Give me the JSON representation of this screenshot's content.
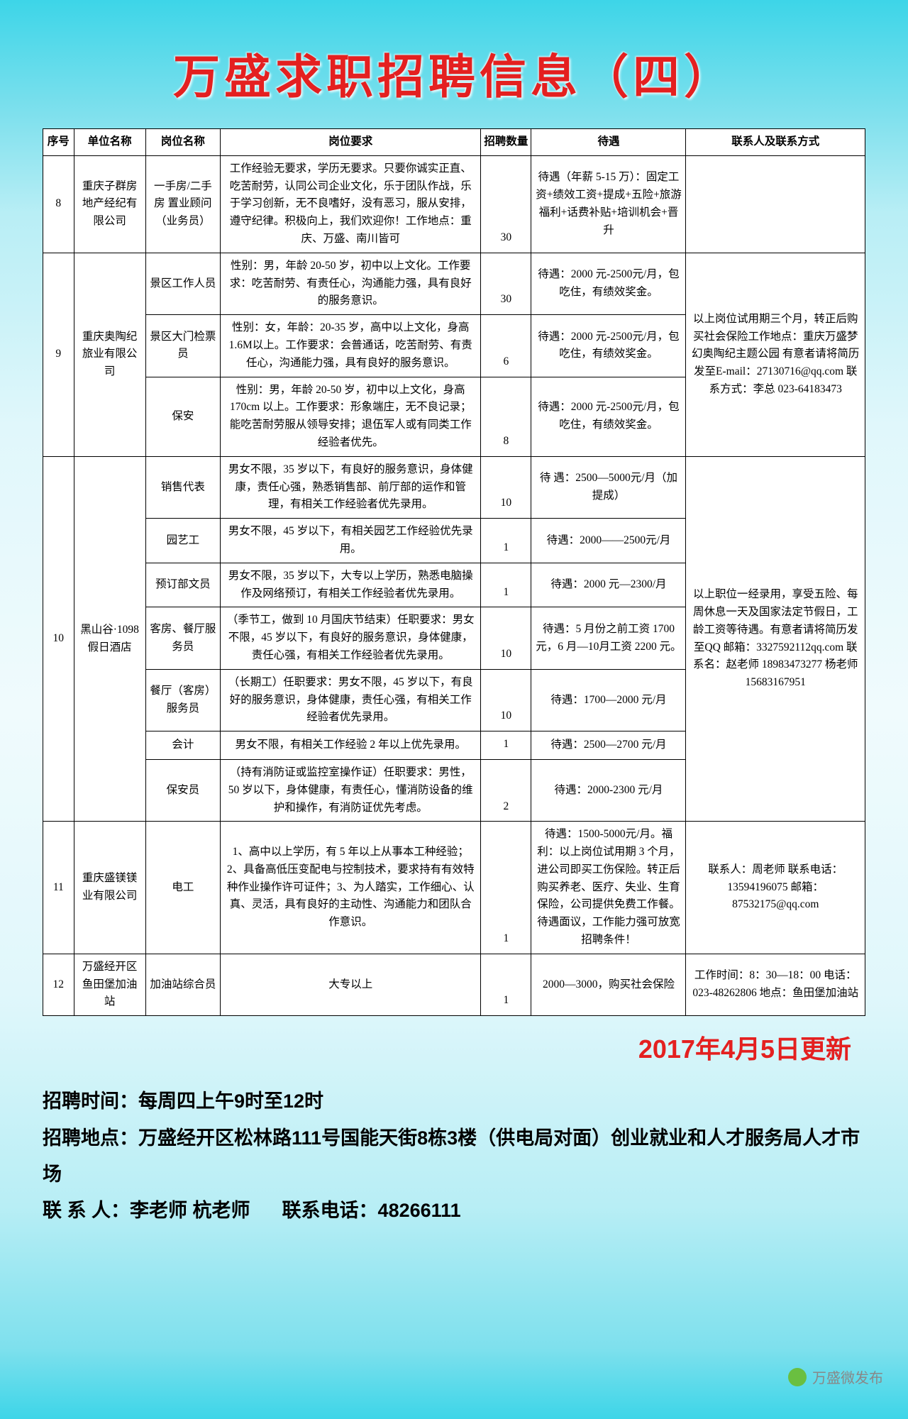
{
  "title": "万盛求职招聘信息（四）",
  "headers": {
    "seq": "序号",
    "company": "单位名称",
    "position": "岗位名称",
    "req": "岗位要求",
    "num": "招聘数量",
    "salary": "待遇",
    "contact": "联系人及联系方式"
  },
  "rows": [
    {
      "seq": "8",
      "company": "重庆子群房地产经纪有限公司",
      "position": "一手房/二手房 置业顾问（业务员）",
      "req": "工作经验无要求，学历无要求。只要你诚实正直、吃苦耐劳，认同公司企业文化，乐于团队作战，乐于学习创新，无不良嗜好，没有恶习，服从安排，遵守纪律。积极向上，我们欢迎你！工作地点：重庆、万盛、南川皆可",
      "num": "30",
      "salary": "待遇（年薪 5-15 万）：固定工资+绩效工资+提成+五险+旅游福利+话费补贴+培训机会+晋升",
      "contact": ""
    },
    {
      "seq": "9",
      "company": "重庆奥陶纪旅业有限公司",
      "jobs": [
        {
          "position": "景区工作人员",
          "req": "性别：男，年龄 20-50 岁，初中以上文化。工作要求：吃苦耐劳、有责任心，沟通能力强，具有良好的服务意识。",
          "num": "30",
          "salary": "待遇：2000 元-2500元/月，包吃住，有绩效奖金。"
        },
        {
          "position": "景区大门检票员",
          "req": "性别：女，年龄：20-35 岁，高中以上文化，身高 1.6M以上。工作要求：会普通话，吃苦耐劳、有责任心，沟通能力强，具有良好的服务意识。",
          "num": "6",
          "salary": "待遇：2000 元-2500元/月，包吃住，有绩效奖金。"
        },
        {
          "position": "保安",
          "req": "性别：男，年龄 20-50 岁，初中以上文化，身高 170cm 以上。工作要求：形象端庄，无不良记录；能吃苦耐劳服从领导安排；退伍军人或有同类工作经验者优先。",
          "num": "8",
          "salary": "待遇：2000 元-2500元/月，包吃住，有绩效奖金。"
        }
      ],
      "contact": "以上岗位试用期三个月，转正后购买社会保险工作地点：重庆万盛梦幻奥陶纪主题公园 有意者请将简历发至E-mail：27130716@qq.com 联系方式：李总 023-64183473"
    },
    {
      "seq": "10",
      "company": "黑山谷·1098假日酒店",
      "jobs": [
        {
          "position": "销售代表",
          "req": "男女不限，35 岁以下，有良好的服务意识，身体健康，责任心强，熟悉销售部、前厅部的运作和管理，有相关工作经验者优先录用。",
          "num": "10",
          "salary": "待 遇：2500—5000元/月（加提成）"
        },
        {
          "position": "园艺工",
          "req": "男女不限，45 岁以下，有相关园艺工作经验优先录用。",
          "num": "1",
          "salary": "待遇：2000——2500元/月"
        },
        {
          "position": "预订部文员",
          "req": "男女不限，35 岁以下，大专以上学历，熟悉电脑操作及网络预订，有相关工作经验者优先录用。",
          "num": "1",
          "salary": "待遇：2000 元—2300/月"
        },
        {
          "position": "客房、餐厅服务员",
          "req": "（季节工，做到 10 月国庆节结束）任职要求：男女不限，45 岁以下，有良好的服务意识，身体健康，责任心强，有相关工作经验者优先录用。",
          "num": "10",
          "salary": "待遇：5 月份之前工资 1700 元，6 月—10月工资 2200 元。"
        },
        {
          "position": "餐厅（客房）服务员",
          "req": "（长期工）任职要求：男女不限，45 岁以下，有良好的服务意识，身体健康，责任心强，有相关工作经验者优先录用。",
          "num": "10",
          "salary": "待遇：1700—2000 元/月"
        },
        {
          "position": "会计",
          "req": "男女不限，有相关工作经验 2 年以上优先录用。",
          "num": "1",
          "salary": "待遇：2500—2700 元/月"
        },
        {
          "position": "保安员",
          "req": "（持有消防证或监控室操作证）任职要求：男性，50 岁以下，身体健康，有责任心，懂消防设备的维护和操作，有消防证优先考虑。",
          "num": "2",
          "salary": "待遇：2000-2300 元/月"
        }
      ],
      "contact": "以上职位一经录用，享受五险、每周休息一天及国家法定节假日，工龄工资等待遇。有意者请将简历发至QQ 邮箱：3327592112qq.com 联系名：赵老师 18983473277 杨老师 15683167951"
    },
    {
      "seq": "11",
      "company": "重庆盛镁镁业有限公司",
      "position": "电工",
      "req": "1、高中以上学历，有 5 年以上从事本工种经验；2、具备高低压变配电与控制技术，要求持有有效特种作业操作许可证件；3、为人踏实，工作细心、认真、灵活，具有良好的主动性、沟通能力和团队合作意识。",
      "num": "1",
      "salary": "待遇：1500-5000元/月。福利：以上岗位试用期 3 个月，进公司即买工伤保险。转正后购买养老、医疗、失业、生育保险，公司提供免费工作餐。待遇面议，工作能力强可放宽招聘条件！",
      "contact": "联系人：周老师 联系电话：13594196075 邮箱：87532175@qq.com"
    },
    {
      "seq": "12",
      "company": "万盛经开区鱼田堡加油站",
      "position": "加油站综合员",
      "req": "大专以上",
      "num": "1",
      "salary": "2000—3000，购买社会保险",
      "contact": "工作时间：8：30—18：00 电话：023-48262806 地点：鱼田堡加油站"
    }
  ],
  "date": "2017年4月5日更新",
  "footer": {
    "l1_label": "招聘时间：",
    "l1_val": "每周四上午9时至12时",
    "l2_label": "招聘地点：",
    "l2_val": "万盛经开区松林路111号国能天街8栋3楼（供电局对面）创业就业和人才服务局人才市场",
    "l3_label": "联 系 人：",
    "l3_val": "李老师  杭老师",
    "l3_phone_label": "联系电话：",
    "l3_phone_val": "48266111"
  },
  "watermark": "万盛微发布"
}
